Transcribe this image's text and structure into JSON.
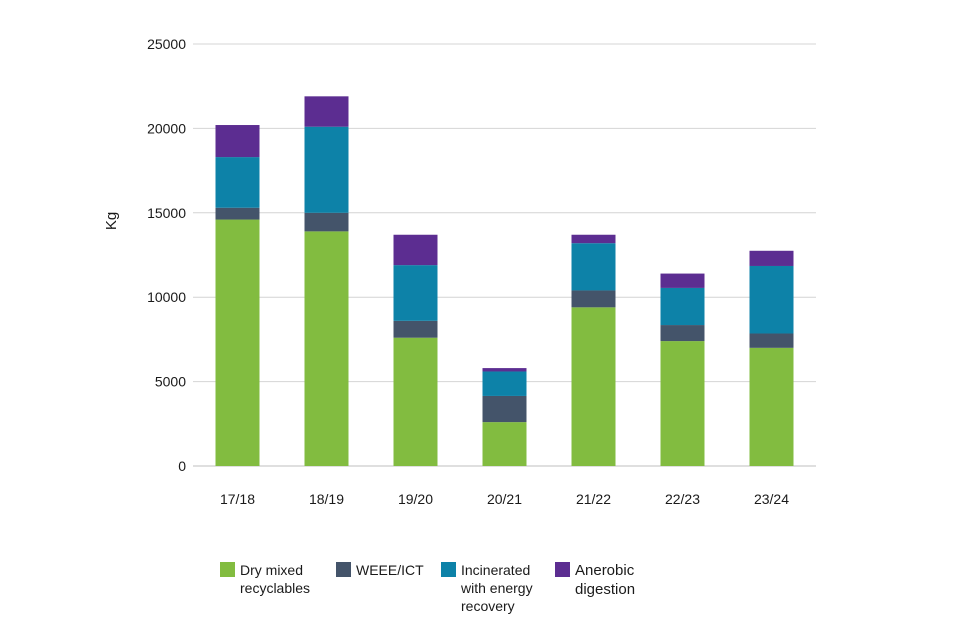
{
  "chart_data": {
    "type": "bar",
    "stacked": true,
    "title": "",
    "xlabel": "",
    "ylabel": "Kg",
    "ylim": [
      0,
      25000
    ],
    "yticks": [
      "0",
      "5000",
      "10000",
      "15000",
      "20000",
      "25000"
    ],
    "grid": true,
    "legend_position": "bottom",
    "categories": [
      "17/18",
      "18/19",
      "19/20",
      "20/21",
      "21/22",
      "22/23",
      "23/24"
    ],
    "series": [
      {
        "name": "Dry mixed recyclables",
        "color": "#82bc40",
        "values": [
          14600,
          13900,
          7600,
          2600,
          9400,
          7400,
          7000
        ]
      },
      {
        "name": "WEEE/ICT",
        "color": "#44546a",
        "values": [
          700,
          1100,
          1000,
          1550,
          1000,
          950,
          850
        ]
      },
      {
        "name": "Incinerated with energy recovery",
        "color": "#0d82a8",
        "values": [
          3000,
          5100,
          3300,
          1450,
          2800,
          2200,
          4000
        ]
      },
      {
        "name": "Anerobic digestion",
        "color": "#5c2d91",
        "values": [
          1900,
          1800,
          1800,
          200,
          500,
          850,
          900
        ]
      }
    ]
  },
  "legend": [
    {
      "label": "Dry mixed\nrecyclables"
    },
    {
      "label": "WEEE/ICT"
    },
    {
      "label": "Incinerated\nwith energy\nrecovery"
    },
    {
      "label": "Anerobic\ndigestion"
    }
  ]
}
